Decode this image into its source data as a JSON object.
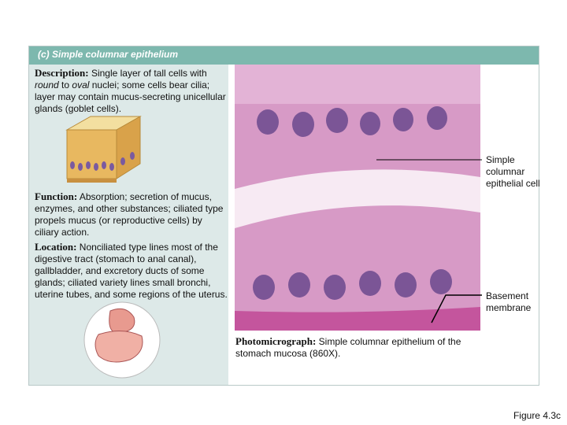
{
  "header": {
    "title": "(c)  Simple columnar epithelium"
  },
  "description": {
    "label": "Description:",
    "parts": [
      " Single layer of tall cells with ",
      "round",
      " to ",
      "oval",
      " nuclei; some cells bear cilia; layer may contain mucus-secreting unicellular glands (goblet cells)."
    ]
  },
  "function": {
    "label": "Function:",
    "text": " Absorption; secretion of mucus, enzymes, and other substances; ciliated type propels mucus (or reproductive cells) by ciliary action."
  },
  "location": {
    "label": "Location:",
    "text": " Nonciliated type lines most of the digestive tract (stomach to anal canal), gallbladder, and excretory ducts of some glands; ciliated variety lines small bronchi, uterine tubes, and some regions of the uterus."
  },
  "labels": [
    "Simple columnar epithelial cell",
    "Basement membrane"
  ],
  "caption": {
    "label": "Photomicrograph:",
    "text": " Simple columnar epithelium of the stomach mucosa (860X)."
  },
  "figure": "Figure 4.3c"
}
